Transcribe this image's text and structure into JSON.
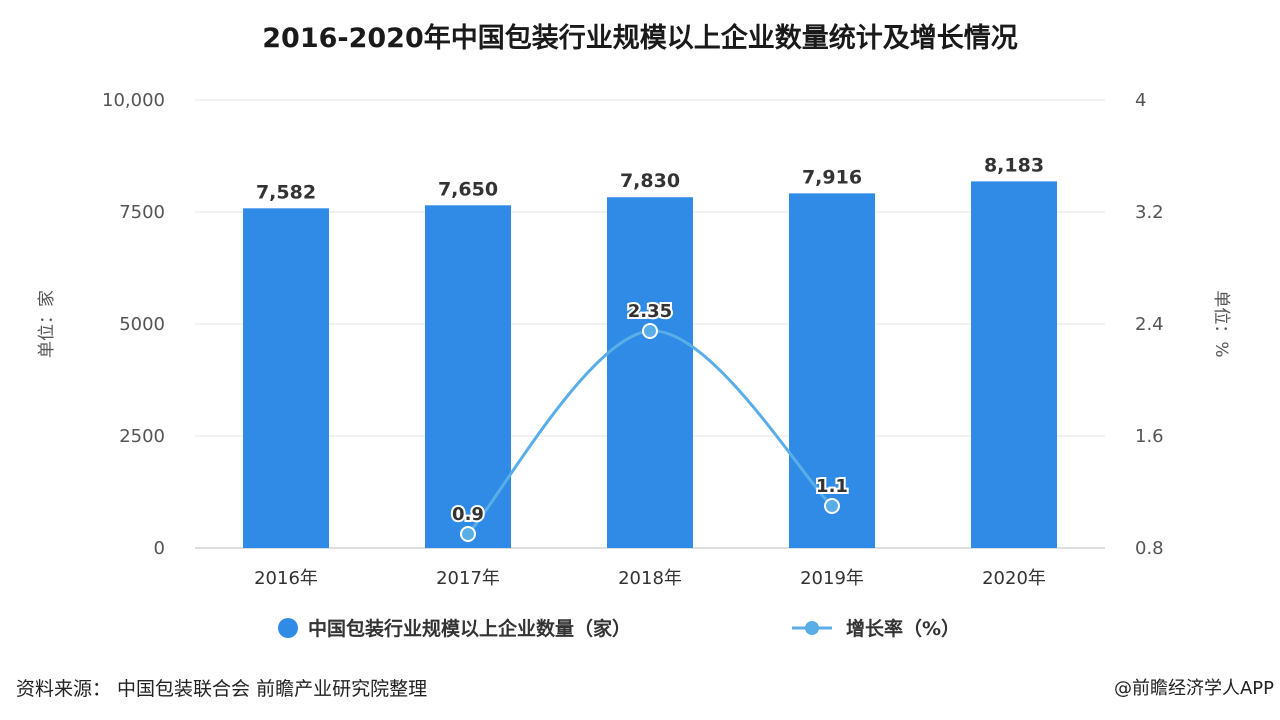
{
  "chart_data": {
    "type": "bar",
    "title": "2016-2020年中国包装行业规模以上企业数量统计及增长情况",
    "categories": [
      "2016年",
      "2017年",
      "2018年",
      "2019年",
      "2020年"
    ],
    "series": [
      {
        "name": "中国包装行业规模以上企业数量（家）",
        "type": "bar",
        "axis": "left",
        "color": "#2f8be6",
        "values": [
          7582,
          7650,
          7830,
          7916,
          8183
        ],
        "labels": [
          "7,582",
          "7,650",
          "7,830",
          "7,916",
          "8,183"
        ]
      },
      {
        "name": "增长率（%）",
        "type": "line",
        "axis": "right",
        "color": "#5aaee8",
        "values": [
          null,
          0.9,
          2.35,
          1.1,
          null
        ],
        "labels": [
          "",
          "0.9",
          "2.35",
          "1.1",
          ""
        ]
      }
    ],
    "y_left": {
      "label": "单位：家",
      "ylim": [
        0,
        10000
      ],
      "ticks": [
        0,
        2500,
        5000,
        7500,
        10000
      ],
      "tick_labels": [
        "0",
        "2500",
        "5000",
        "7500",
        "10,000"
      ]
    },
    "y_right": {
      "label": "单位：%",
      "ylim": [
        0.8,
        4
      ],
      "ticks": [
        0.8,
        1.6,
        2.4,
        3.2,
        4
      ],
      "tick_labels": [
        "0.8",
        "1.6",
        "2.4",
        "3.2",
        "4"
      ]
    },
    "grid": true,
    "legend_position": "bottom"
  },
  "source": "资料来源： 中国包装联合会 前瞻产业研究院整理",
  "brand": "@前瞻经济学人APP"
}
